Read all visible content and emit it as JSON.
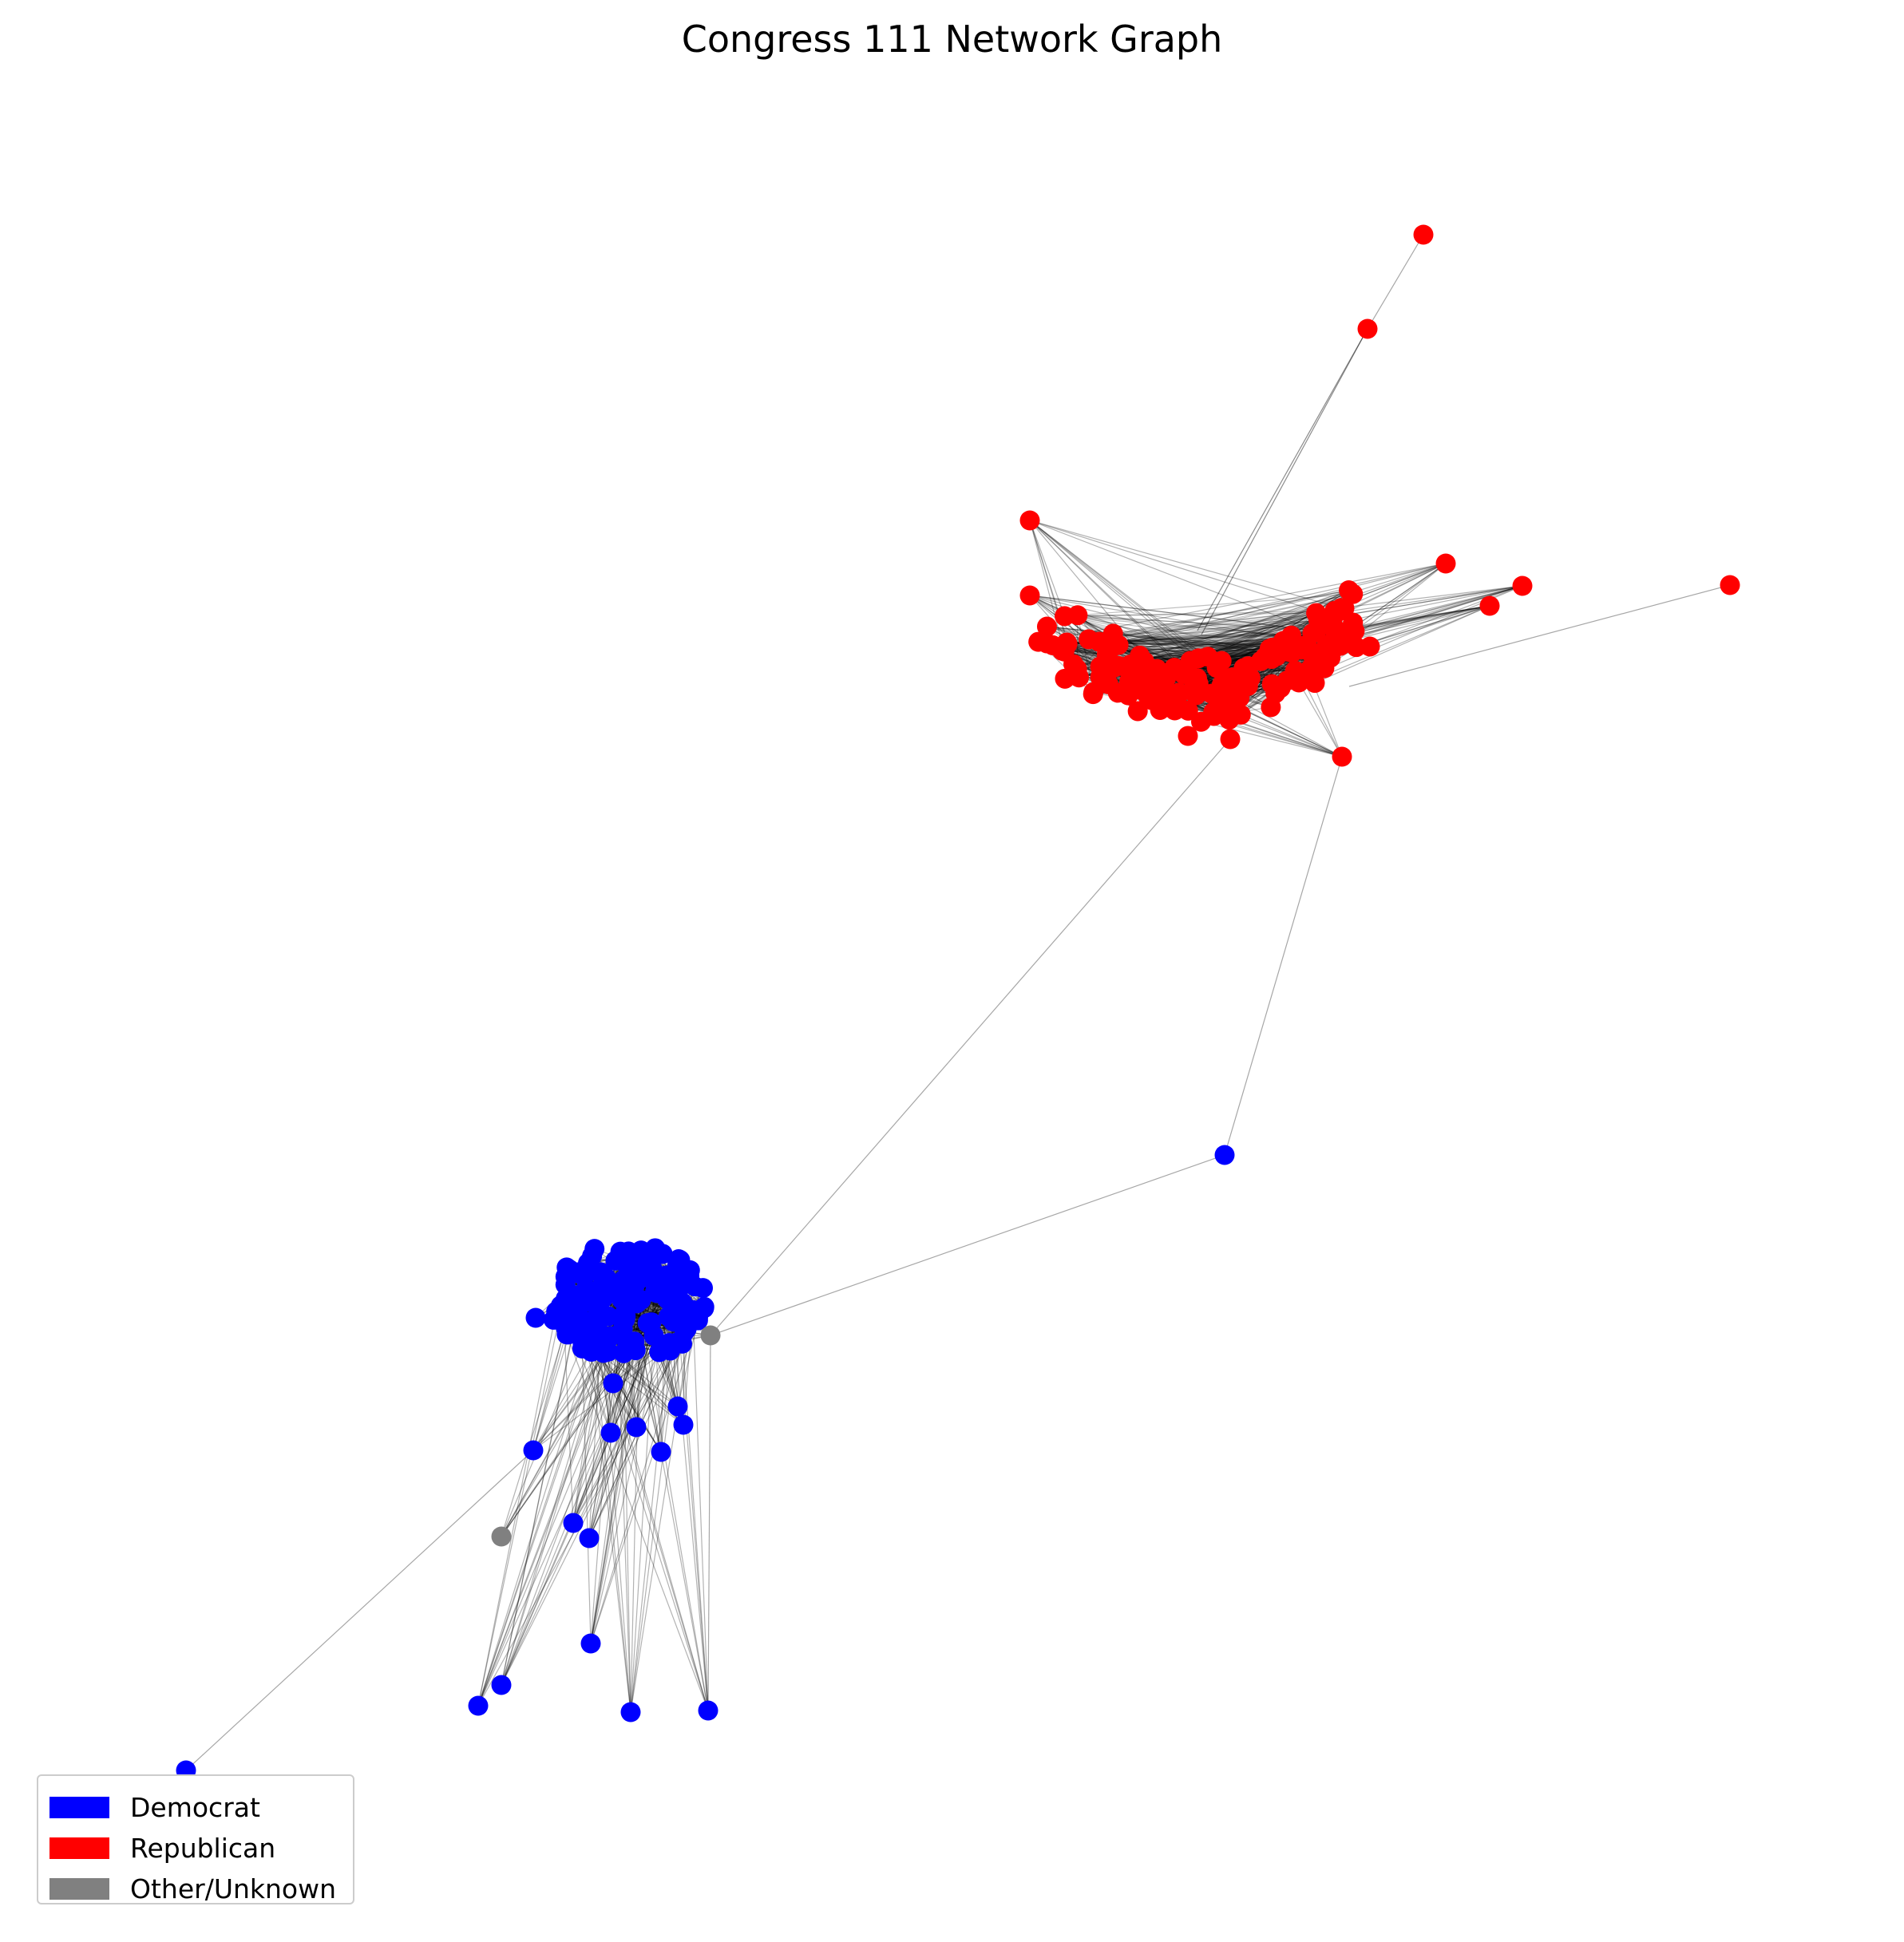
{
  "title": "Congress 111 Network Graph",
  "legend": [
    {
      "label": "Democrat",
      "color": "#0000ff"
    },
    {
      "label": "Republican",
      "color": "#ff0000"
    },
    {
      "label": "Other/Unknown",
      "color": "#808080"
    }
  ],
  "colors": {
    "edge": "#000000",
    "background": "#ffffff"
  }
}
